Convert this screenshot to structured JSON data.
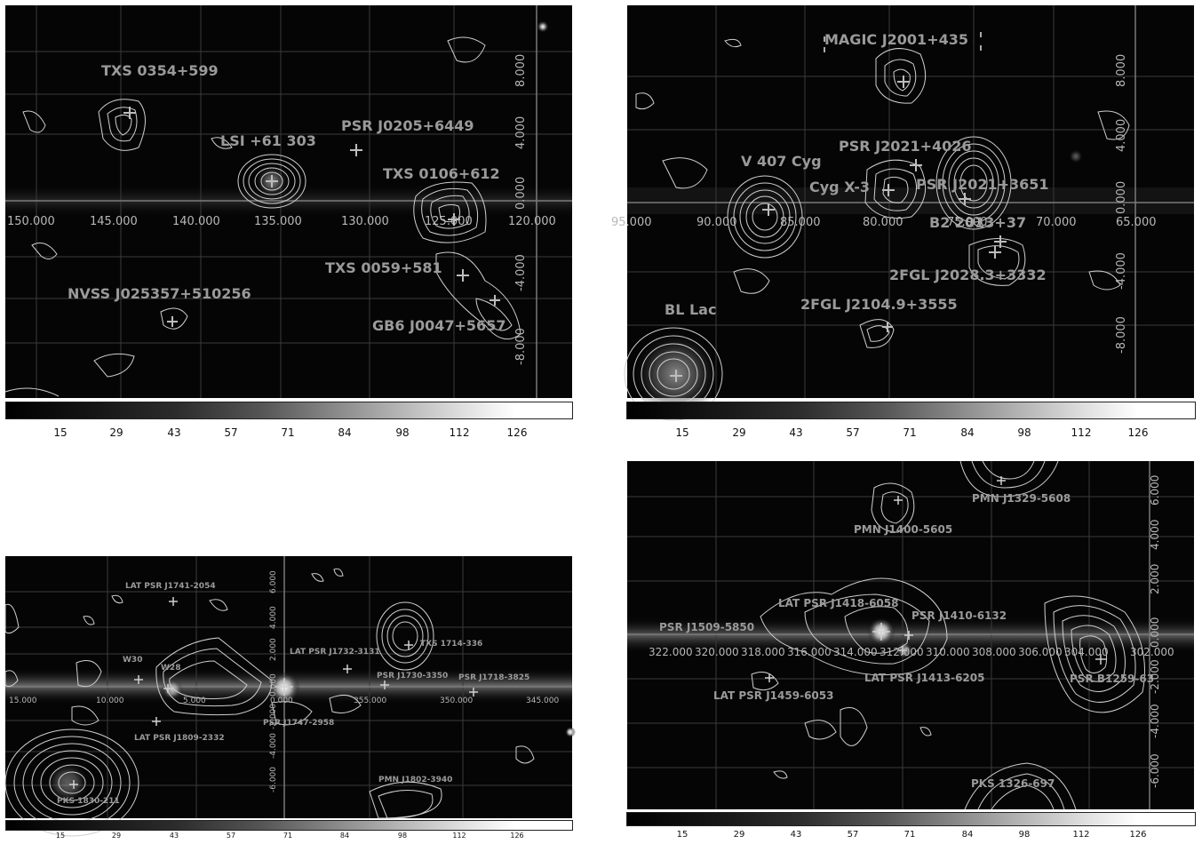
{
  "colorbar_ticks": [
    "15",
    "29",
    "43",
    "57",
    "71",
    "84",
    "98",
    "112",
    "126"
  ],
  "panels": [
    {
      "id": "top-left",
      "x_ticks": [
        "150.000",
        "145.000",
        "140.000",
        "135.000",
        "130.000",
        "125.000",
        "120.000"
      ],
      "y_ticks": [
        "8.000",
        "4.000",
        "0.000",
        "-4.000",
        "-8.000"
      ],
      "sources": [
        "TXS 0354+599",
        "LSI +61 303",
        "PSR J0205+6449",
        "TXS 0106+612",
        "TXS 0059+581",
        "NVSS J025357+510256",
        "GB6 J0047+5657"
      ]
    },
    {
      "id": "top-right",
      "x_ticks": [
        "95.000",
        "90.000",
        "85.000",
        "80.000",
        "75.000",
        "70.000",
        "65.000"
      ],
      "y_ticks": [
        "8.000",
        "4.000",
        "0.000",
        "-4.000",
        "-8.000"
      ],
      "sources": [
        "MAGIC J2001+435",
        "PSR J2021+4026",
        "V 407 Cyg",
        "Cyg X-3",
        "PSR J2021+3651",
        "B2 2013+37",
        "2FGL J2028.3+3332",
        "2FGL J2104.9+3555",
        "BL Lac"
      ]
    },
    {
      "id": "bottom-left",
      "x_ticks": [
        "15.000",
        "10.000",
        "5.000",
        "0.000",
        "355.000",
        "350.000",
        "345.000"
      ],
      "y_ticks": [
        "6.000",
        "4.000",
        "2.000",
        "0.000",
        "-2.000",
        "-4.000",
        "-6.000"
      ],
      "sources": [
        "LAT PSR J1741-2054",
        "TXS 1714-336",
        "W30",
        "W28",
        "LAT PSR J1732-3131",
        "PSR J1730-3350",
        "PSR J1718-3825",
        "PSR J1747-2958",
        "LAT PSR J1809-2332",
        "PMN J1802-3940",
        "PKS 1830-211"
      ]
    },
    {
      "id": "bottom-right",
      "x_ticks": [
        "322.000",
        "320.000",
        "318.000",
        "316.000",
        "314.000",
        "312.000",
        "310.000",
        "308.000",
        "306.000",
        "304.000",
        "302.000"
      ],
      "y_ticks": [
        "6.000",
        "4.000",
        "2.000",
        "0.000",
        "-2.000",
        "-4.000",
        "-6.000"
      ],
      "sources": [
        "PMN J1329-5608",
        "PMN J1400-5605",
        "LAT PSR J1418-6058",
        "PSR J1410-6132",
        "PSR J1509-5850",
        "LAT PSR J1413-6205",
        "PSR B1259-63",
        "LAT PSR J1459-6053",
        "PKS 1326-697"
      ]
    }
  ]
}
